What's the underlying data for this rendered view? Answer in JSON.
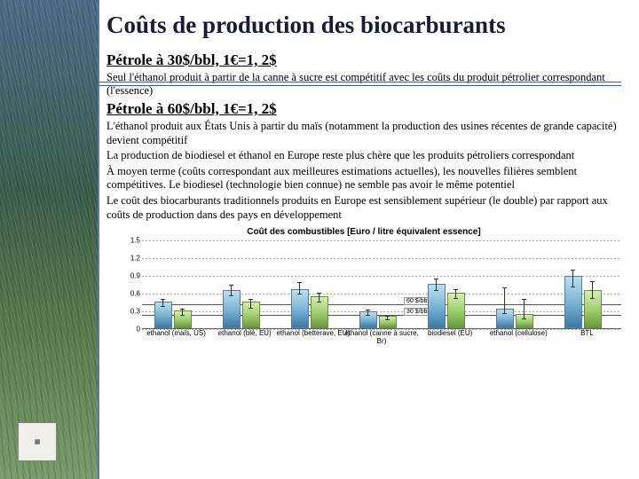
{
  "title": "Coûts de production des biocarburants",
  "section1": {
    "heading": "Pétrole à 30$/bbl, 1€=1, 2$",
    "p1": "Seul l'éthanol produit à partir de la canne à sucre est compétitif avec les coûts du produit pétrolier correspondant (l'essence)"
  },
  "section2": {
    "heading": "Pétrole à 60$/bbl, 1€=1, 2$",
    "p1": "L'éthanol produit aux États Unis à partir du maïs (notamment la production des usines récentes de grande capacité) devient compétitif",
    "p2": "La production de biodiesel et éthanol en Europe reste plus chère que les produits pétroliers correspondant",
    "p3": "À moyen terme (coûts correspondant aux meilleures estimations actuelles), les nouvelles filières semblent compétitives. Le biodiesel (technologie bien connue) ne semble pas avoir le même potentiel",
    "p4": "Le coût des biocarburants traditionnels produits en Europe est sensiblement supérieur (le double) par rapport aux coûts de production dans des pays en développement"
  },
  "chart": {
    "type": "bar",
    "title": "Coût des combustibles [Euro / litre équivalent essence]",
    "ylim": [
      0,
      1.5
    ],
    "yticks": [
      0,
      0.3,
      0.6,
      0.9,
      1.2,
      1.5
    ],
    "grid_color": "#aaaaaa",
    "background_color": "#ffffff",
    "bar_colors": [
      "#7db5d5",
      "#a0d070"
    ],
    "ref_lines": [
      {
        "value": 0.42,
        "label": "60 $/bbl"
      },
      {
        "value": 0.24,
        "label": "30 $/bbl"
      }
    ],
    "categories": [
      {
        "label": "ethanol (maïs, US)",
        "v1": 0.42,
        "v2": 0.28,
        "err1": [
          0.36,
          0.5
        ],
        "err2": [
          0.22,
          0.34
        ]
      },
      {
        "label": "ethanol (blé, EU)",
        "v1": 0.62,
        "v2": 0.42,
        "err1": [
          0.54,
          0.74
        ],
        "err2": [
          0.34,
          0.5
        ]
      },
      {
        "label": "ethanol (betterave, EU)",
        "v1": 0.64,
        "v2": 0.52,
        "err1": [
          0.58,
          0.78
        ],
        "err2": [
          0.44,
          0.6
        ]
      },
      {
        "label": "ethanol (canne à sucre, Br)",
        "v1": 0.26,
        "v2": 0.18,
        "err1": [
          0.22,
          0.32
        ],
        "err2": [
          0.14,
          0.22
        ]
      },
      {
        "label": "biodiesel (EU)",
        "v1": 0.72,
        "v2": 0.58,
        "err1": [
          0.64,
          0.84
        ],
        "err2": [
          0.5,
          0.66
        ]
      },
      {
        "label": "ethanol (cellulose)",
        "v1": 0.3,
        "v2": 0.22,
        "err1": [
          0.24,
          0.7
        ],
        "err2": [
          0.16,
          0.5
        ]
      },
      {
        "label": "BTL",
        "v1": 0.86,
        "v2": 0.62,
        "err1": [
          0.7,
          1.0
        ],
        "err2": [
          0.5,
          0.8
        ]
      }
    ]
  }
}
